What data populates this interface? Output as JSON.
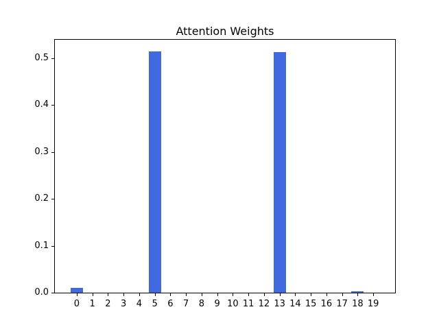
{
  "figure": {
    "background": "#ffffff"
  },
  "chart_data": {
    "type": "bar",
    "title": "Attention Weights",
    "xlabel": "",
    "ylabel": "",
    "categories": [
      "0",
      "1",
      "2",
      "3",
      "4",
      "5",
      "6",
      "7",
      "8",
      "9",
      "10",
      "11",
      "12",
      "13",
      "14",
      "15",
      "16",
      "17",
      "18",
      "19"
    ],
    "values": [
      0.01,
      0,
      0,
      0,
      0,
      0.514,
      0,
      0,
      0,
      0,
      0,
      0,
      0,
      0.513,
      0,
      0,
      0,
      0,
      0.003,
      0
    ],
    "bar_color": "#4169E1",
    "bar_width": 0.8,
    "xlim": [
      -1.4,
      20.4
    ],
    "ylim": [
      0,
      0.539
    ],
    "yticks": [
      0.0,
      0.1,
      0.2,
      0.3,
      0.4,
      0.5
    ],
    "grid": false,
    "legend": null
  }
}
